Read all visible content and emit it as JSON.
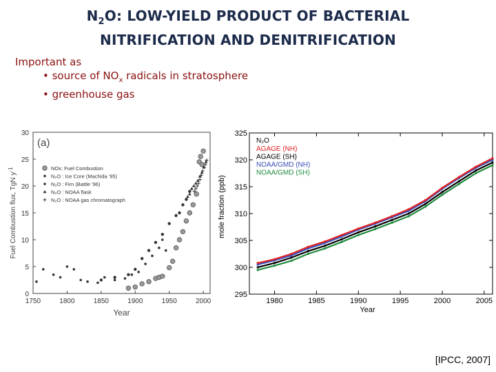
{
  "slide": {
    "title_line1_pre": "N",
    "title_line1_sub": "2",
    "title_line1_post": "O: LOW-YIELD PRODUCT OF BACTERIAL",
    "title_line2": "NITRIFICATION AND DENITRIFICATION",
    "intro": "Important as",
    "bullet1_pre": "• source of NO",
    "bullet1_sub": "x",
    "bullet1_post": " radicals in stratosphere",
    "bullet2": "• greenhouse gas",
    "citation": "[IPCC, 2007]"
  },
  "chart_data": [
    {
      "type": "scatter",
      "panel_label": "(a)",
      "xlabel": "Year",
      "ylabel": "Fuel Combustion flux, TgN y",
      "ylabel_sup": "-1",
      "xlim": [
        1750,
        2010
      ],
      "ylim": [
        0,
        30
      ],
      "xticks": [
        1750,
        1800,
        1850,
        1900,
        1950,
        2000
      ],
      "yticks": [
        0,
        5,
        10,
        15,
        20,
        25,
        30
      ],
      "legend_position": "upper-left",
      "series": [
        {
          "name": "NOx: Fuel Combustion",
          "marker": "circle",
          "x": [
            1890,
            1900,
            1910,
            1920,
            1930,
            1935,
            1940,
            1950,
            1955,
            1960,
            1965,
            1970,
            1975,
            1980,
            1985,
            1990,
            1994,
            1996,
            1998,
            2000
          ],
          "y": [
            1.0,
            1.2,
            1.8,
            2.2,
            2.8,
            3.0,
            3.2,
            4.8,
            6.0,
            8.5,
            10.0,
            11.5,
            13.5,
            15.0,
            16.5,
            18.5,
            24.5,
            25.5,
            24.0,
            26.5
          ]
        },
        {
          "name": "N₂O : Ice Core (Machida '95)",
          "marker": "dot",
          "x": [
            1755,
            1765,
            1780,
            1790,
            1800,
            1810,
            1820,
            1830,
            1845,
            1855,
            1870,
            1885,
            1895,
            1905,
            1915,
            1925,
            1935,
            1940,
            1945
          ],
          "y": [
            2.2,
            4.5,
            3.5,
            3.0,
            5.0,
            4.5,
            2.5,
            2.2,
            2.0,
            3.0,
            2.5,
            2.8,
            3.5,
            4.0,
            5.5,
            7.0,
            8.5,
            10.0,
            8.0
          ]
        },
        {
          "name": "N₂O : Firn (Battle '96)",
          "marker": "dot",
          "x": [
            1850,
            1870,
            1890,
            1900,
            1910,
            1920,
            1930,
            1940,
            1950,
            1960,
            1965,
            1970,
            1975,
            1980
          ],
          "y": [
            2.5,
            3.0,
            3.5,
            4.5,
            6.5,
            8.0,
            9.5,
            11.0,
            13.0,
            14.5,
            15.0,
            16.5,
            17.5,
            19.0
          ]
        },
        {
          "name": "N₂O : NOAA flask",
          "marker": "triangle",
          "x": [
            1977,
            1980,
            1983,
            1986,
            1989,
            1992,
            1995,
            1998,
            2001,
            2004
          ],
          "y": [
            18.0,
            18.5,
            19.5,
            20.0,
            20.5,
            21.0,
            21.8,
            22.5,
            23.5,
            24.5
          ]
        },
        {
          "name": "N₂O : NOAA gas chromatograph",
          "marker": "plus",
          "x": [
            1987,
            1989,
            1991,
            1993,
            1995,
            1997,
            1999,
            2001,
            2003,
            2005
          ],
          "y": [
            19.0,
            19.5,
            20.0,
            20.5,
            21.2,
            22.0,
            22.8,
            23.5,
            24.0,
            24.8
          ]
        }
      ]
    },
    {
      "type": "line",
      "title": "N₂O",
      "xlabel": "Year",
      "ylabel": "mole fraction (ppb)",
      "xlim": [
        1977,
        2006
      ],
      "ylim": [
        295,
        325
      ],
      "xticks": [
        1980,
        1985,
        1990,
        1995,
        2000,
        2005
      ],
      "yticks": [
        295,
        300,
        305,
        310,
        315,
        320,
        325
      ],
      "legend_position": "upper-left",
      "series": [
        {
          "name": "AGAGE (NH)",
          "color": "#e02020",
          "x": [
            1978,
            1980,
            1982,
            1984,
            1986,
            1988,
            1990,
            1992,
            1994,
            1996,
            1998,
            2000,
            2002,
            2004,
            2006
          ],
          "y": [
            300.8,
            301.5,
            302.5,
            303.8,
            304.8,
            306.0,
            307.2,
            308.3,
            309.5,
            310.8,
            312.5,
            314.8,
            316.8,
            318.7,
            320.3
          ]
        },
        {
          "name": "AGAGE (SH)",
          "color": "#000000",
          "x": [
            1978,
            1980,
            1982,
            1984,
            1986,
            1988,
            1990,
            1992,
            1994,
            1996,
            1998,
            2000,
            2002,
            2004,
            2006
          ],
          "y": [
            300.0,
            300.8,
            301.8,
            303.0,
            304.0,
            305.2,
            306.5,
            307.6,
            308.8,
            310.0,
            311.8,
            314.0,
            316.0,
            318.0,
            319.5
          ]
        },
        {
          "name": "NOAA/GMD (NH)",
          "color": "#3a4fb8",
          "x": [
            1978,
            1980,
            1982,
            1984,
            1986,
            1988,
            1990,
            1992,
            1994,
            1996,
            1998,
            2000,
            2002,
            2004,
            2006
          ],
          "y": [
            300.5,
            301.3,
            302.2,
            303.5,
            304.5,
            305.7,
            307.0,
            308.1,
            309.3,
            310.5,
            312.3,
            314.6,
            316.6,
            318.5,
            320.0
          ]
        },
        {
          "name": "NOAA/GMD (SH)",
          "color": "#1e8a3c",
          "x": [
            1978,
            1980,
            1982,
            1984,
            1986,
            1988,
            1990,
            1992,
            1994,
            1996,
            1998,
            2000,
            2002,
            2004,
            2006
          ],
          "y": [
            299.5,
            300.3,
            301.2,
            302.5,
            303.5,
            304.7,
            306.0,
            307.1,
            308.3,
            309.5,
            311.3,
            313.5,
            315.5,
            317.5,
            319.0
          ]
        }
      ]
    }
  ]
}
